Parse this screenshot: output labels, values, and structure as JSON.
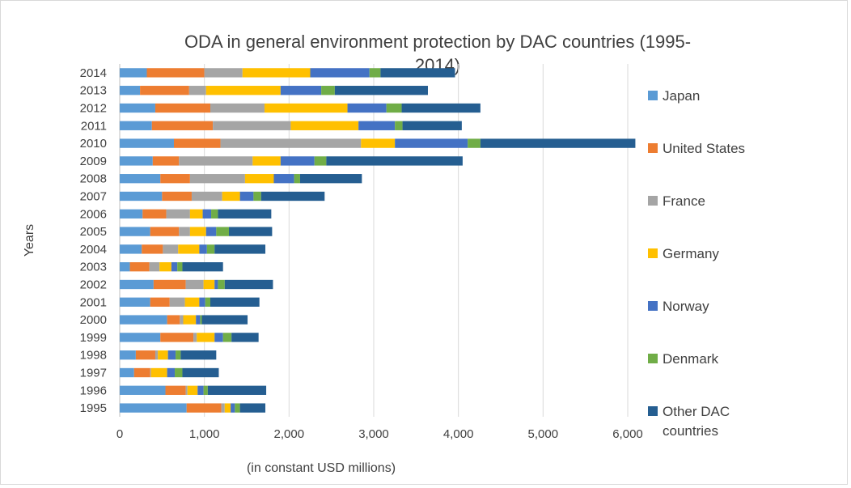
{
  "chart_data": {
    "type": "bar",
    "orientation": "horizontal",
    "stacked": true,
    "title_line1": "ODA in general environment protection by DAC countries (1995-",
    "title_line2": "2014)",
    "xlabel": "(in constant USD millions)",
    "ylabel": "Years",
    "xlim": [
      0,
      6000
    ],
    "x_ticks": [
      "0",
      "1,000",
      "2,000",
      "3,000",
      "4,000",
      "5,000",
      "6,000"
    ],
    "grid": "vertical",
    "legend_position": "right",
    "categories": [
      "1995",
      "1996",
      "1997",
      "1998",
      "1999",
      "2000",
      "2001",
      "2002",
      "2003",
      "2004",
      "2005",
      "2006",
      "2007",
      "2008",
      "2009",
      "2010",
      "2011",
      "2012",
      "2013",
      "2014"
    ],
    "series": [
      {
        "name": "Japan",
        "color": "#5B9BD5",
        "values": [
          790,
          540,
          170,
          190,
          480,
          560,
          360,
          400,
          120,
          260,
          360,
          270,
          500,
          480,
          390,
          640,
          380,
          420,
          240,
          320
        ]
      },
      {
        "name": "United States",
        "color": "#ED7D31",
        "values": [
          410,
          240,
          190,
          230,
          390,
          150,
          230,
          380,
          230,
          250,
          340,
          280,
          350,
          350,
          310,
          550,
          720,
          650,
          580,
          680
        ]
      },
      {
        "name": "France",
        "color": "#A5A5A5",
        "values": [
          40,
          20,
          10,
          30,
          40,
          40,
          180,
          210,
          120,
          180,
          130,
          280,
          360,
          650,
          870,
          1660,
          920,
          640,
          200,
          450
        ]
      },
      {
        "name": "Germany",
        "color": "#FFC000",
        "values": [
          70,
          120,
          190,
          120,
          210,
          150,
          170,
          130,
          140,
          250,
          190,
          150,
          210,
          340,
          330,
          400,
          800,
          980,
          880,
          800
        ]
      },
      {
        "name": "Norway",
        "color": "#4472C4",
        "values": [
          50,
          70,
          90,
          90,
          100,
          50,
          70,
          40,
          70,
          90,
          120,
          100,
          160,
          240,
          400,
          860,
          430,
          460,
          480,
          700
        ]
      },
      {
        "name": "Denmark",
        "color": "#70AD47",
        "values": [
          60,
          50,
          90,
          60,
          100,
          20,
          60,
          80,
          60,
          90,
          150,
          80,
          90,
          70,
          140,
          150,
          90,
          180,
          160,
          130
        ]
      },
      {
        "name": "Other DAC countries",
        "color": "#255E91",
        "values": [
          300,
          690,
          430,
          420,
          320,
          540,
          580,
          570,
          480,
          600,
          510,
          630,
          750,
          730,
          1610,
          1830,
          700,
          930,
          1100,
          880
        ]
      }
    ]
  }
}
